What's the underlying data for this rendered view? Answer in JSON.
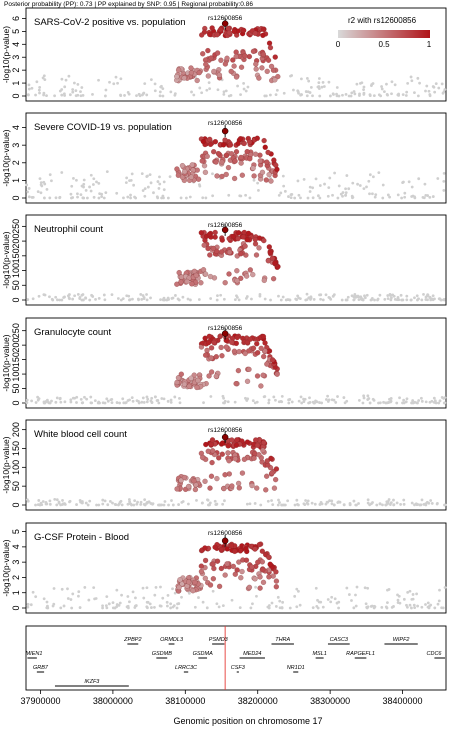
{
  "header": {
    "caption": "Posterior probability (PP): 0.73 | PP explained by SNP: 0.95 | Regional probability:0.86"
  },
  "legend": {
    "title": "r2 with rs12600856",
    "ticks": [
      "0",
      "0.5",
      "1"
    ],
    "color_low": "#d9d9d9",
    "color_high": "#b01419"
  },
  "colors": {
    "background_snp": "#cfcfcf",
    "lead_snp": "#8b0000",
    "marker_line": "#e53935",
    "frame": "#000000"
  },
  "xaxis": {
    "label": "Genomic position on chromosome 17",
    "range": [
      37880000,
      38460000
    ],
    "ticks": [
      37900000,
      38000000,
      38100000,
      38200000,
      38300000,
      38400000
    ],
    "tick_labels": [
      "37900000",
      "38000000",
      "38100000",
      "38200000",
      "38300000",
      "38400000"
    ]
  },
  "ylabel": "-log10(p-value)",
  "lead_snp": {
    "id": "rs12600856",
    "position": 38155000
  },
  "chart_data": [
    {
      "type": "scatter",
      "title": "SARS-CoV-2 positive vs. population",
      "lead_label": "rs12600856",
      "ylim": [
        0,
        6.5
      ],
      "yticks": [
        0,
        1,
        2,
        3,
        4,
        5,
        6
      ],
      "ytick_labels": [
        "0",
        "1",
        "2",
        "3",
        "4",
        "5",
        "6"
      ],
      "lead_value": 5.6,
      "plateau": 5.3,
      "secondary": 3.2,
      "tail": 2.1,
      "background_max": 1.6
    },
    {
      "type": "scatter",
      "title": "Severe COVID-19 vs. population",
      "lead_label": "rs12600856",
      "ylim": [
        0,
        4.6
      ],
      "yticks": [
        0,
        1,
        2,
        3,
        4
      ],
      "ytick_labels": [
        "0",
        "1",
        "2",
        "3",
        "4"
      ],
      "lead_value": 3.8,
      "plateau": 3.4,
      "secondary": 2.4,
      "tail": 1.8,
      "background_max": 1.5
    },
    {
      "type": "scatter",
      "title": "Neutrophil count",
      "lead_label": "rs12600856",
      "ylim": [
        0,
        275
      ],
      "yticks": [
        0,
        50,
        100,
        150,
        200,
        250
      ],
      "ytick_labels": [
        "0",
        "50",
        "100",
        "150",
        "200",
        "250"
      ],
      "lead_value": 238,
      "plateau": 230,
      "secondary": 175,
      "tail": 95,
      "background_max": 20
    },
    {
      "type": "scatter",
      "title": "Granulocyte count",
      "lead_label": "rs12600856",
      "ylim": [
        0,
        280
      ],
      "yticks": [
        0,
        50,
        100,
        150,
        200,
        250
      ],
      "ytick_labels": [
        "0",
        "50",
        "100",
        "150",
        "200",
        "250"
      ],
      "lead_value": 240,
      "plateau": 232,
      "secondary": 178,
      "tail": 97,
      "background_max": 25
    },
    {
      "type": "scatter",
      "title": "White blood cell count",
      "lead_label": "rs12600856",
      "ylim": [
        0,
        215
      ],
      "yticks": [
        0,
        50,
        100,
        150,
        200
      ],
      "ytick_labels": [
        "0",
        "50",
        "100",
        "150",
        "200"
      ],
      "lead_value": 180,
      "plateau": 174,
      "secondary": 132,
      "tail": 72,
      "background_max": 15
    },
    {
      "type": "scatter",
      "title": "G-CSF Protein - Blood",
      "lead_label": "rs12600856",
      "ylim": [
        0,
        5.3
      ],
      "yticks": [
        0,
        1,
        2,
        3,
        4,
        5
      ],
      "ytick_labels": [
        "0",
        "1",
        "2",
        "3",
        "4",
        "5"
      ],
      "lead_value": 4.4,
      "plateau": 4.2,
      "secondary": 2.9,
      "tail": 2.0,
      "background_max": 1.4
    }
  ],
  "genes": [
    {
      "name": "MIEN1",
      "start": 37882000,
      "end": 37895000,
      "row": 2
    },
    {
      "name": "GRB7",
      "start": 37895000,
      "end": 37905000,
      "row": 3
    },
    {
      "name": "IKZF3",
      "start": 37920000,
      "end": 38022000,
      "row": 4
    },
    {
      "name": "ZPBP2",
      "start": 38020000,
      "end": 38035000,
      "row": 1
    },
    {
      "name": "GSDMB",
      "start": 38060000,
      "end": 38075000,
      "row": 2
    },
    {
      "name": "ORMDL3",
      "start": 38077000,
      "end": 38085000,
      "row": 1
    },
    {
      "name": "LRRC3C",
      "start": 38098000,
      "end": 38104000,
      "row": 3
    },
    {
      "name": "GSDMA",
      "start": 38118000,
      "end": 38130000,
      "row": 2
    },
    {
      "name": "PSMD3",
      "start": 38137000,
      "end": 38154000,
      "row": 1
    },
    {
      "name": "CSF3",
      "start": 38171000,
      "end": 38174000,
      "row": 3
    },
    {
      "name": "MED24",
      "start": 38175000,
      "end": 38210000,
      "row": 2
    },
    {
      "name": "THRA",
      "start": 38219000,
      "end": 38250000,
      "row": 1
    },
    {
      "name": "NR1D1",
      "start": 38249000,
      "end": 38256000,
      "row": 3
    },
    {
      "name": "MSL1",
      "start": 38280000,
      "end": 38291000,
      "row": 2
    },
    {
      "name": "CASC3",
      "start": 38297000,
      "end": 38327000,
      "row": 1
    },
    {
      "name": "RAPGEFL1",
      "start": 38334000,
      "end": 38350000,
      "row": 2
    },
    {
      "name": "WIPF2",
      "start": 38375000,
      "end": 38421000,
      "row": 1
    },
    {
      "name": "CDC6",
      "start": 38444000,
      "end": 38460000,
      "row": 2
    }
  ]
}
